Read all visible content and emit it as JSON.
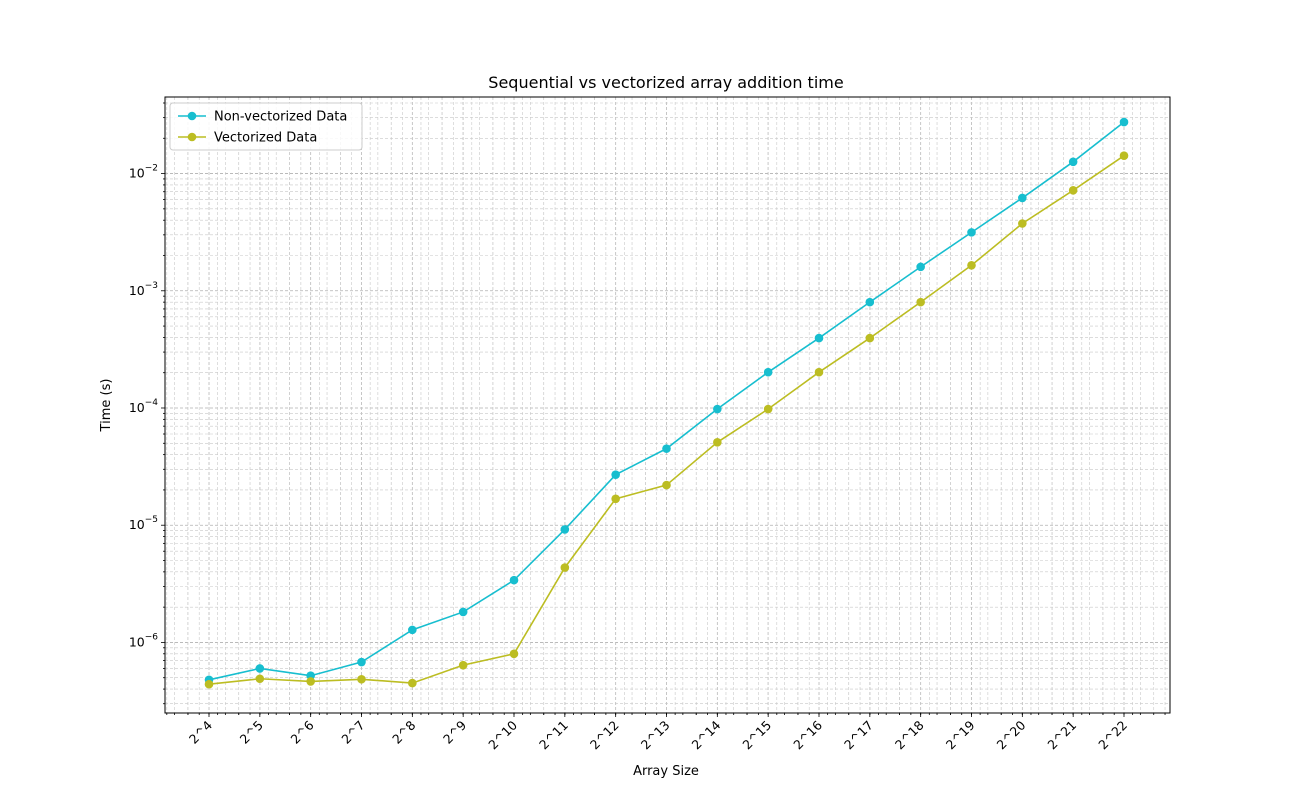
{
  "chart_data": {
    "type": "line",
    "title": "Sequential vs vectorized array addition time",
    "xlabel": "Array Size",
    "ylabel": "Time (s)",
    "x_scale": "log2",
    "y_scale": "log",
    "categories": [
      "2^4",
      "2^5",
      "2^6",
      "2^7",
      "2^8",
      "2^9",
      "2^10",
      "2^11",
      "2^12",
      "2^13",
      "2^14",
      "2^15",
      "2^16",
      "2^17",
      "2^18",
      "2^19",
      "2^20",
      "2^21",
      "2^22"
    ],
    "x": [
      16,
      32,
      64,
      128,
      256,
      512,
      1024,
      2048,
      4096,
      8192,
      16384,
      32768,
      65536,
      131072,
      262144,
      524288,
      1048576,
      2097152,
      4194304
    ],
    "ylim": [
      2.5e-07,
      0.045
    ],
    "y_tick_labels": [
      "10^-6",
      "10^-5",
      "10^-4",
      "10^-3",
      "10^-2"
    ],
    "grid": true,
    "legend_position": "top-left",
    "series": [
      {
        "name": "Non-vectorized Data",
        "color": "#17becf",
        "values": [
          4.8e-07,
          6e-07,
          5.2e-07,
          6.8e-07,
          1.28e-06,
          1.82e-06,
          3.4e-06,
          9.2e-06,
          2.7e-05,
          4.5e-05,
          9.8e-05,
          0.000202,
          0.000395,
          0.0008,
          0.0016,
          0.00315,
          0.0062,
          0.0126,
          0.0275
        ]
      },
      {
        "name": "Vectorized Data",
        "color": "#bcbd22",
        "values": [
          4.4e-07,
          4.9e-07,
          4.65e-07,
          4.85e-07,
          4.5e-07,
          6.4e-07,
          8e-07,
          4.35e-06,
          1.68e-05,
          2.2e-05,
          5.1e-05,
          9.8e-05,
          0.000202,
          0.000395,
          0.0008,
          0.00165,
          0.00375,
          0.0072,
          0.0142
        ]
      }
    ]
  }
}
